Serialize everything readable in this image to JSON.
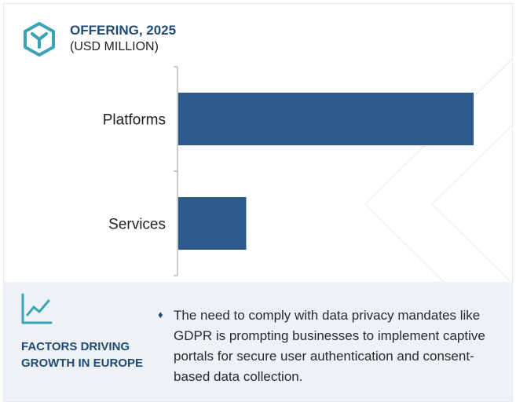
{
  "header": {
    "title": "OFFERING, 2025",
    "subtitle": "(USD MILLION)",
    "logo_icon": "hexagon-y-logo-icon"
  },
  "chart_data": {
    "type": "bar",
    "orientation": "horizontal",
    "categories": [
      "Platforms",
      "Services"
    ],
    "values": [
      100,
      23
    ],
    "xlim": [
      0,
      100
    ],
    "title": "OFFERING, 2025",
    "subtitle": "(USD MILLION)",
    "xlabel": "",
    "ylabel": "",
    "grid": false,
    "bar_color": "#2c5a8a"
  },
  "factors": {
    "icon": "trend-chart-icon",
    "heading": "FACTORS DRIVING GROWTH IN EUROPE",
    "bullet_icon": "diamond-bullet-icon",
    "text": "The need to comply with data privacy mandates like GDPR is prompting businesses to implement captive portals for secure user authentication and consent-based data collection."
  },
  "colors": {
    "accent": "#1f4b73",
    "bar": "#2c5a8a",
    "icon_teal": "#3aa3b5",
    "panel_bg": "#eef1f5"
  }
}
